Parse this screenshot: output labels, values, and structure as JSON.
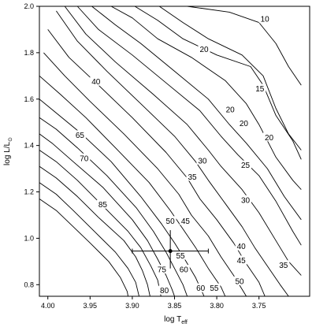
{
  "chart_data": {
    "type": "contour",
    "xlabel": {
      "main": "log T",
      "sub": "eff"
    },
    "ylabel": {
      "main": "log L/L",
      "sub": "⊙"
    },
    "xlim": [
      4.01,
      3.69
    ],
    "ylim": [
      0.75,
      2.0
    ],
    "x_ticks": [
      {
        "value": 4.0,
        "label": "4.00"
      },
      {
        "value": 3.95,
        "label": "3.95"
      },
      {
        "value": 3.9,
        "label": "3.90"
      },
      {
        "value": 3.85,
        "label": "3.85"
      },
      {
        "value": 3.8,
        "label": "3.80"
      },
      {
        "value": 3.75,
        "label": "3.75"
      }
    ],
    "y_ticks": [
      {
        "value": 0.8,
        "label": "0.8"
      },
      {
        "value": 1.0,
        "label": "1.0"
      },
      {
        "value": 1.2,
        "label": "1.2"
      },
      {
        "value": 1.4,
        "label": "1.4"
      },
      {
        "value": 1.6,
        "label": "1.6"
      },
      {
        "value": 1.8,
        "label": "1.8"
      },
      {
        "value": 2.0,
        "label": "2.0"
      }
    ],
    "contour_lines": [
      [
        [
          3.835,
          2.0
        ],
        [
          3.785,
          1.975
        ],
        [
          3.75,
          1.93
        ],
        [
          3.73,
          1.84
        ],
        [
          3.715,
          1.74
        ],
        [
          3.7,
          1.66
        ]
      ],
      [
        [
          3.868,
          2.0
        ],
        [
          3.84,
          1.93
        ],
        [
          3.81,
          1.86
        ],
        [
          3.77,
          1.79
        ],
        [
          3.745,
          1.7
        ],
        [
          3.73,
          1.56
        ],
        [
          3.715,
          1.45
        ],
        [
          3.7,
          1.38
        ]
      ],
      [
        [
          3.897,
          2.0
        ],
        [
          3.87,
          1.94
        ],
        [
          3.84,
          1.86
        ],
        [
          3.8,
          1.79
        ],
        [
          3.76,
          1.74
        ],
        [
          3.745,
          1.66
        ],
        [
          3.73,
          1.53
        ],
        [
          3.71,
          1.42
        ],
        [
          3.7,
          1.34
        ]
      ],
      [
        [
          3.925,
          2.0
        ],
        [
          3.9,
          1.95
        ],
        [
          3.87,
          1.86
        ],
        [
          3.83,
          1.78
        ],
        [
          3.79,
          1.68
        ],
        [
          3.765,
          1.58
        ],
        [
          3.75,
          1.49
        ],
        [
          3.73,
          1.35
        ],
        [
          3.71,
          1.25
        ],
        [
          3.7,
          1.21
        ]
      ],
      [
        [
          3.948,
          2.0
        ],
        [
          3.92,
          1.92
        ],
        [
          3.89,
          1.84
        ],
        [
          3.85,
          1.72
        ],
        [
          3.81,
          1.6
        ],
        [
          3.785,
          1.49
        ],
        [
          3.765,
          1.41
        ],
        [
          3.74,
          1.3
        ],
        [
          3.72,
          1.18
        ],
        [
          3.7,
          1.08
        ]
      ],
      [
        [
          3.965,
          2.0
        ],
        [
          3.94,
          1.9
        ],
        [
          3.9,
          1.79
        ],
        [
          3.86,
          1.67
        ],
        [
          3.82,
          1.55
        ],
        [
          3.795,
          1.44
        ],
        [
          3.775,
          1.36
        ],
        [
          3.75,
          1.27
        ],
        [
          3.73,
          1.16
        ],
        [
          3.71,
          1.03
        ],
        [
          3.7,
          0.97
        ]
      ],
      [
        [
          3.98,
          2.0
        ],
        [
          3.955,
          1.88
        ],
        [
          3.92,
          1.76
        ],
        [
          3.875,
          1.62
        ],
        [
          3.835,
          1.49
        ],
        [
          3.81,
          1.38
        ],
        [
          3.795,
          1.31
        ],
        [
          3.77,
          1.21
        ],
        [
          3.75,
          1.11
        ],
        [
          3.73,
          0.99
        ],
        [
          3.715,
          0.9
        ],
        [
          3.7,
          0.84
        ]
      ],
      [
        [
          3.99,
          1.98
        ],
        [
          3.965,
          1.85
        ],
        [
          3.93,
          1.72
        ],
        [
          3.89,
          1.58
        ],
        [
          3.85,
          1.44
        ],
        [
          3.825,
          1.33
        ],
        [
          3.81,
          1.25
        ],
        [
          3.79,
          1.15
        ],
        [
          3.77,
          1.05
        ],
        [
          3.755,
          0.96
        ],
        [
          3.74,
          0.88
        ],
        [
          3.725,
          0.8
        ],
        [
          3.715,
          0.75
        ]
      ],
      [
        [
          4.0,
          1.9
        ],
        [
          3.975,
          1.78
        ],
        [
          3.94,
          1.66
        ],
        [
          3.9,
          1.52
        ],
        [
          3.86,
          1.37
        ],
        [
          3.835,
          1.26
        ],
        [
          3.82,
          1.17
        ],
        [
          3.8,
          1.08
        ],
        [
          3.78,
          0.98
        ],
        [
          3.765,
          0.89
        ],
        [
          3.75,
          0.81
        ],
        [
          3.743,
          0.75
        ]
      ],
      [
        [
          4.005,
          1.8
        ],
        [
          3.98,
          1.7
        ],
        [
          3.95,
          1.59
        ],
        [
          3.91,
          1.45
        ],
        [
          3.87,
          1.3
        ],
        [
          3.845,
          1.19
        ],
        [
          3.83,
          1.1
        ],
        [
          3.81,
          1.01
        ],
        [
          3.795,
          0.92
        ],
        [
          3.78,
          0.84
        ],
        [
          3.765,
          0.75
        ]
      ],
      [
        [
          4.01,
          1.7
        ],
        [
          3.985,
          1.62
        ],
        [
          3.955,
          1.52
        ],
        [
          3.92,
          1.39
        ],
        [
          3.88,
          1.24
        ],
        [
          3.855,
          1.12
        ],
        [
          3.84,
          1.04
        ],
        [
          3.825,
          0.96
        ],
        [
          3.81,
          0.87
        ],
        [
          3.795,
          0.79
        ],
        [
          3.79,
          0.75
        ]
      ],
      [
        [
          4.01,
          1.6
        ],
        [
          3.99,
          1.54
        ],
        [
          3.96,
          1.45
        ],
        [
          3.925,
          1.33
        ],
        [
          3.89,
          1.18
        ],
        [
          3.865,
          1.06
        ],
        [
          3.85,
          0.98
        ],
        [
          3.838,
          0.91
        ],
        [
          3.825,
          0.83
        ],
        [
          3.815,
          0.75
        ]
      ],
      [
        [
          4.01,
          1.52
        ],
        [
          3.99,
          1.47
        ],
        [
          3.965,
          1.39
        ],
        [
          3.93,
          1.27
        ],
        [
          3.895,
          1.13
        ],
        [
          3.875,
          1.03
        ],
        [
          3.86,
          0.94
        ],
        [
          3.85,
          0.87
        ],
        [
          3.84,
          0.8
        ],
        [
          3.835,
          0.75
        ]
      ],
      [
        [
          4.01,
          1.45
        ],
        [
          3.995,
          1.41
        ],
        [
          3.97,
          1.33
        ],
        [
          3.935,
          1.22
        ],
        [
          3.9,
          1.08
        ],
        [
          3.882,
          0.99
        ],
        [
          3.87,
          0.91
        ],
        [
          3.86,
          0.84
        ],
        [
          3.853,
          0.78
        ],
        [
          3.85,
          0.75
        ]
      ],
      [
        [
          4.01,
          1.38
        ],
        [
          3.99,
          1.33
        ],
        [
          3.965,
          1.25
        ],
        [
          3.935,
          1.14
        ],
        [
          3.905,
          1.03
        ],
        [
          3.89,
          0.96
        ],
        [
          3.878,
          0.88
        ],
        [
          3.87,
          0.82
        ],
        [
          3.866,
          0.75
        ]
      ],
      [
        [
          4.01,
          1.31
        ],
        [
          3.99,
          1.26
        ],
        [
          3.965,
          1.18
        ],
        [
          3.94,
          1.09
        ],
        [
          3.91,
          0.99
        ],
        [
          3.896,
          0.92
        ],
        [
          3.888,
          0.86
        ],
        [
          3.882,
          0.8
        ],
        [
          3.879,
          0.75
        ]
      ],
      [
        [
          4.01,
          1.24
        ],
        [
          3.99,
          1.19
        ],
        [
          3.97,
          1.12
        ],
        [
          3.945,
          1.03
        ],
        [
          3.92,
          0.94
        ],
        [
          3.905,
          0.87
        ],
        [
          3.896,
          0.81
        ],
        [
          3.892,
          0.75
        ]
      ],
      [
        [
          4.01,
          1.17
        ],
        [
          3.99,
          1.12
        ],
        [
          3.97,
          1.05
        ],
        [
          3.95,
          0.98
        ],
        [
          3.928,
          0.9
        ],
        [
          3.914,
          0.83
        ],
        [
          3.906,
          0.77
        ],
        [
          3.905,
          0.75
        ]
      ]
    ],
    "contour_labels": [
      {
        "text": "10",
        "x": 3.743,
        "y": 1.945
      },
      {
        "text": "15",
        "x": 3.749,
        "y": 1.645
      },
      {
        "text": "20",
        "x": 3.815,
        "y": 1.815
      },
      {
        "text": "20",
        "x": 3.784,
        "y": 1.555
      },
      {
        "text": "20",
        "x": 3.768,
        "y": 1.495
      },
      {
        "text": "20",
        "x": 3.738,
        "y": 1.435
      },
      {
        "text": "25",
        "x": 3.766,
        "y": 1.315
      },
      {
        "text": "30",
        "x": 3.817,
        "y": 1.335
      },
      {
        "text": "30",
        "x": 3.766,
        "y": 1.165
      },
      {
        "text": "35",
        "x": 3.829,
        "y": 1.265
      },
      {
        "text": "35",
        "x": 3.721,
        "y": 0.885
      },
      {
        "text": "40",
        "x": 3.943,
        "y": 1.675
      },
      {
        "text": "40",
        "x": 3.771,
        "y": 0.965
      },
      {
        "text": "45",
        "x": 3.837,
        "y": 1.075
      },
      {
        "text": "45",
        "x": 3.771,
        "y": 0.905
      },
      {
        "text": "50",
        "x": 3.855,
        "y": 1.075
      },
      {
        "text": "50",
        "x": 3.773,
        "y": 0.815
      },
      {
        "text": "55",
        "x": 3.843,
        "y": 0.925
      },
      {
        "text": "55",
        "x": 3.803,
        "y": 0.785
      },
      {
        "text": "60",
        "x": 3.839,
        "y": 0.865
      },
      {
        "text": "60",
        "x": 3.819,
        "y": 0.785
      },
      {
        "text": "65",
        "x": 3.962,
        "y": 1.445
      },
      {
        "text": "70",
        "x": 3.957,
        "y": 1.345
      },
      {
        "text": "75",
        "x": 3.865,
        "y": 0.865
      },
      {
        "text": "80",
        "x": 3.862,
        "y": 0.775
      },
      {
        "text": "85",
        "x": 3.935,
        "y": 1.145
      }
    ],
    "data_point": {
      "x": 3.855,
      "y": 0.945,
      "x_err": [
        3.9,
        3.81
      ],
      "y_err": [
        0.87,
        1.035
      ]
    },
    "grid": false,
    "legend": "none"
  }
}
